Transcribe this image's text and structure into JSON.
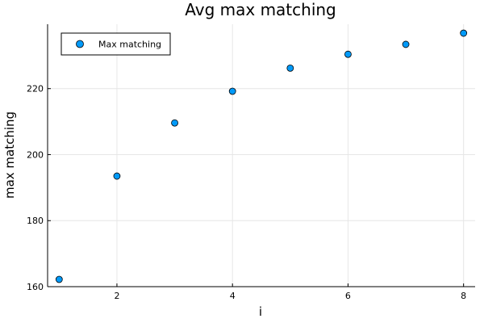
{
  "chart_data": {
    "type": "scatter",
    "title": "Avg max matching",
    "xlabel": "i",
    "ylabel": "max matching",
    "xlim": [
      0.8,
      8.2
    ],
    "ylim": [
      160,
      239.5
    ],
    "xticks": [
      2,
      4,
      6,
      8
    ],
    "yticks": [
      160,
      180,
      200,
      220
    ],
    "grid": true,
    "legend_position": "top-left",
    "series": [
      {
        "name": "Max matching",
        "color": "#009af9",
        "x": [
          1,
          2,
          3,
          4,
          5,
          6,
          7,
          8
        ],
        "y": [
          162.2,
          193.5,
          209.6,
          219.2,
          226.2,
          230.4,
          233.4,
          236.8
        ]
      }
    ]
  }
}
